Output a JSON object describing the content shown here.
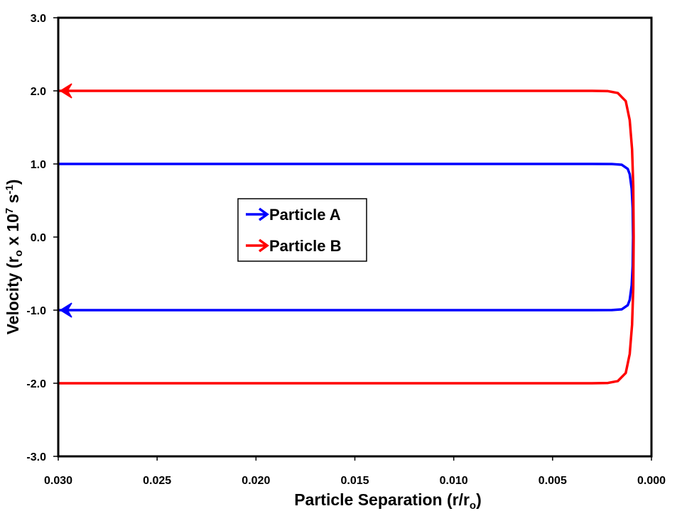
{
  "chart_data": {
    "type": "line",
    "title": "",
    "xlabel": "Particle Separation (r/r",
    "xlabel_sub": "o",
    "xlabel_end": ")",
    "ylabel": "Velocity (r",
    "ylabel_sub": "o",
    "ylabel_mid": " x 10",
    "ylabel_sup": "7",
    "ylabel_mid2": " s",
    "ylabel_sup2": "-1",
    "ylabel_end": ")",
    "xlim": [
      0.03,
      0.0
    ],
    "ylim": [
      -3.0,
      3.0
    ],
    "xticks": [
      "0.030",
      "0.025",
      "0.020",
      "0.015",
      "0.010",
      "0.005",
      "0.000"
    ],
    "xtick_values": [
      0.03,
      0.025,
      0.02,
      0.015,
      0.01,
      0.005,
      0.0
    ],
    "yticks": [
      "3.0",
      "2.0",
      "1.0",
      "0.0",
      "-1.0",
      "-2.0",
      "-3.0"
    ],
    "ytick_values": [
      3,
      2,
      1,
      0,
      -1,
      -2,
      -3
    ],
    "grid": false,
    "legend_placement": "center-left",
    "series": [
      {
        "name": "Particle A",
        "color": "#0000ff",
        "v0": 1.0,
        "r": [
          0.03,
          0.01,
          0.005,
          0.003,
          0.002,
          0.0015,
          0.0012,
          0.0011,
          0.001,
          0.00095,
          0.00093
        ],
        "v_fraction": [
          1,
          1,
          1,
          1,
          0.999,
          0.989,
          0.933,
          0.86,
          0.66,
          0.39,
          0
        ]
      },
      {
        "name": "Particle B",
        "color": "#ff0000",
        "v0": 2.0,
        "r": [
          0.03,
          0.01,
          0.005,
          0.003,
          0.0022,
          0.0017,
          0.0013,
          0.0011,
          0.00098,
          0.00092,
          0.0009
        ],
        "v_fraction": [
          1,
          1,
          1,
          1,
          0.998,
          0.985,
          0.93,
          0.8,
          0.6,
          0.35,
          0
        ]
      }
    ]
  }
}
